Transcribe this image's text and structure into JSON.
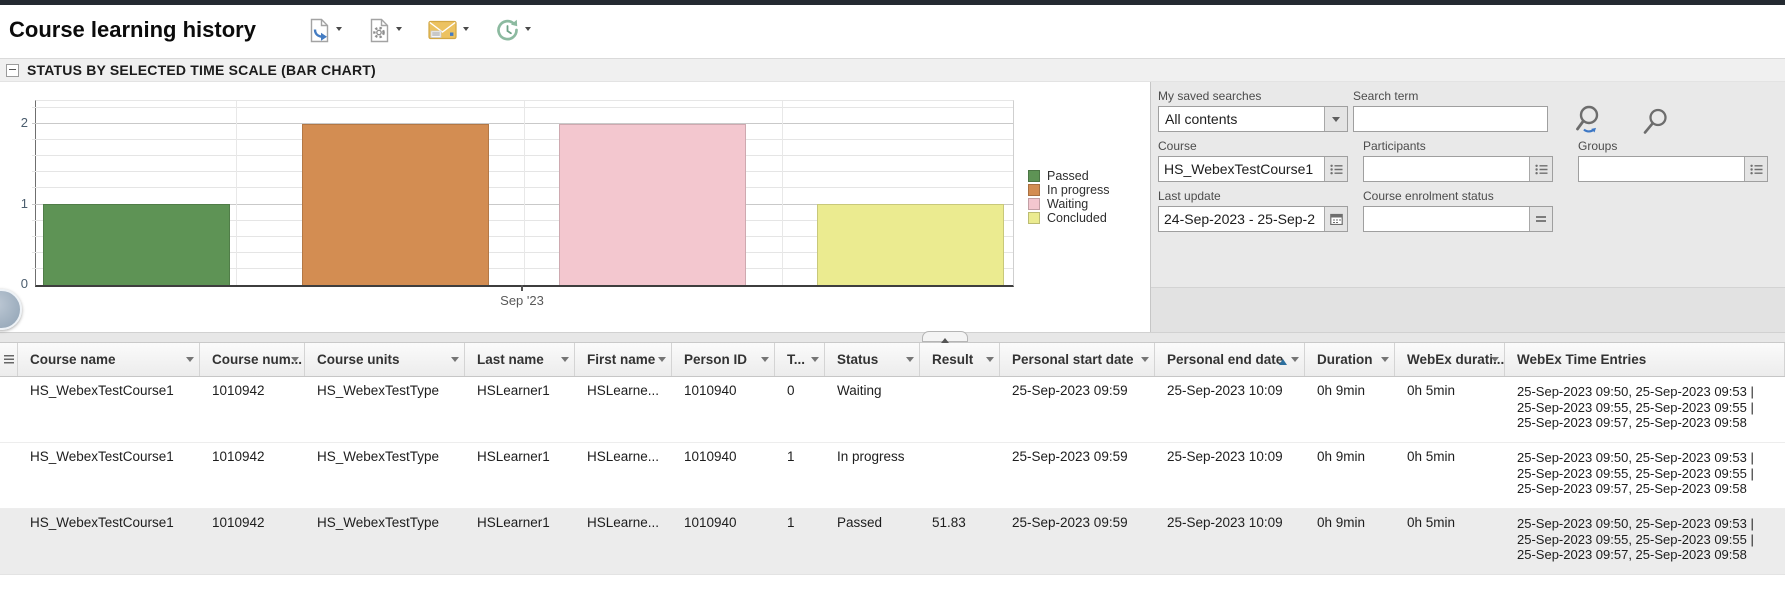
{
  "header": {
    "title": "Course learning history",
    "toolbar_icons": [
      "export-report-icon",
      "report-settings-icon",
      "send-report-email-icon",
      "report-history-icon"
    ]
  },
  "section": {
    "title": "STATUS BY SELECTED TIME SCALE (BAR CHART)"
  },
  "chart_data": {
    "type": "bar",
    "categories": [
      "Sep '23"
    ],
    "series": [
      {
        "name": "Passed",
        "values": [
          1
        ],
        "color": "#5e9355"
      },
      {
        "name": "In progress",
        "values": [
          2
        ],
        "color": "#d38d52"
      },
      {
        "name": "Waiting",
        "values": [
          2
        ],
        "color": "#f3c7cf"
      },
      {
        "name": "Concluded",
        "values": [
          1
        ],
        "color": "#ebeb90"
      }
    ],
    "title": "",
    "xlabel": "",
    "ylabel": "",
    "ylim": [
      0,
      2.3
    ],
    "yticks": [
      0,
      1,
      2
    ],
    "grid": true,
    "legend_position": "right"
  },
  "filters": {
    "saved_searches": {
      "label": "My saved searches",
      "value": "All contents"
    },
    "search_term": {
      "label": "Search term",
      "value": ""
    },
    "course": {
      "label": "Course",
      "value": "HS_WebexTestCourse1"
    },
    "participants": {
      "label": "Participants",
      "value": ""
    },
    "groups": {
      "label": "Groups",
      "value": ""
    },
    "last_update": {
      "label": "Last update",
      "value": "24-Sep-2023 - 25-Sep-2"
    },
    "enrolment_status": {
      "label": "Course enrolment status",
      "value": ""
    }
  },
  "table": {
    "columns": [
      {
        "label": ""
      },
      {
        "label": "Course name",
        "filter": true
      },
      {
        "label": "Course num...",
        "filter": true
      },
      {
        "label": "Course units",
        "filter": true
      },
      {
        "label": "Last name",
        "filter": true
      },
      {
        "label": "First name",
        "filter": true
      },
      {
        "label": "Person ID",
        "filter": true
      },
      {
        "label": "T...",
        "filter": true
      },
      {
        "label": "Status",
        "filter": true
      },
      {
        "label": "Result",
        "filter": true
      },
      {
        "label": "Personal start date",
        "filter": true
      },
      {
        "label": "Personal end date",
        "filter": true,
        "sort": "asc"
      },
      {
        "label": "Duration",
        "filter": true
      },
      {
        "label": "WebEx durati...",
        "filter": true
      },
      {
        "label": "WebEx Time Entries"
      }
    ],
    "rows": [
      [
        "",
        "HS_WebexTestCourse1",
        "1010942",
        "HS_WebexTestType",
        "HSLearner1",
        "HSLearne...",
        "1010940",
        "0",
        "Waiting",
        "",
        "25-Sep-2023 09:59",
        "25-Sep-2023 10:09",
        "0h 9min",
        "0h 5min",
        "25-Sep-2023 09:50, 25-Sep-2023 09:53 |\n25-Sep-2023 09:55, 25-Sep-2023 09:55 |\n25-Sep-2023 09:57, 25-Sep-2023 09:58"
      ],
      [
        "",
        "HS_WebexTestCourse1",
        "1010942",
        "HS_WebexTestType",
        "HSLearner1",
        "HSLearne...",
        "1010940",
        "1",
        "In progress",
        "",
        "25-Sep-2023 09:59",
        "25-Sep-2023 10:09",
        "0h 9min",
        "0h 5min",
        "25-Sep-2023 09:50, 25-Sep-2023 09:53 |\n25-Sep-2023 09:55, 25-Sep-2023 09:55 |\n25-Sep-2023 09:57, 25-Sep-2023 09:58"
      ],
      [
        "",
        "HS_WebexTestCourse1",
        "1010942",
        "HS_WebexTestType",
        "HSLearner1",
        "HSLearne...",
        "1010940",
        "1",
        "Passed",
        "51.83",
        "25-Sep-2023 09:59",
        "25-Sep-2023 10:09",
        "0h 9min",
        "0h 5min",
        "25-Sep-2023 09:50, 25-Sep-2023 09:53 |\n25-Sep-2023 09:55, 25-Sep-2023 09:55 |\n25-Sep-2023 09:57, 25-Sep-2023 09:58"
      ]
    ]
  }
}
